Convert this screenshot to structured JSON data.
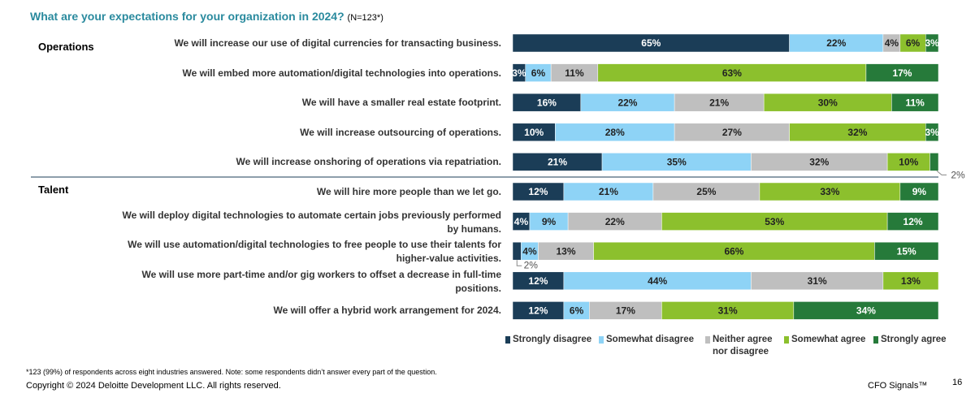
{
  "title": "What are your expectations for your organization in 2024?",
  "subtitle": "(N=123*)",
  "chart_data": [
    {
      "type": "stacked-barh",
      "group": "Operations",
      "xlim": [
        0,
        100
      ],
      "categories": [
        "We will increase our use of digital currencies for transacting business.",
        "We will embed more automation/digital technologies into operations.",
        "We will have a smaller real estate footprint.",
        "We will increase outsourcing of operations.",
        "We will increase onshoring of operations via repatriation."
      ],
      "series": [
        {
          "name": "Strongly disagree",
          "color": "#1b3d57",
          "values": [
            65,
            3,
            16,
            10,
            21
          ],
          "value_labels": [
            "65%",
            "3%",
            "16%",
            "10%",
            "21%"
          ]
        },
        {
          "name": "Somewhat disagree",
          "color": "#8ed3f6",
          "values": [
            22,
            6,
            22,
            28,
            35
          ],
          "value_labels": [
            "22%",
            "6%",
            "22%",
            "28%",
            "35%"
          ]
        },
        {
          "name": "Neither agree nor disagree",
          "color": "#bfbfbf",
          "values": [
            4,
            11,
            21,
            27,
            32
          ],
          "value_labels": [
            "4%",
            "11%",
            "21%",
            "27%",
            "32%"
          ]
        },
        {
          "name": "Somewhat agree",
          "color": "#8cc02d",
          "values": [
            6,
            63,
            30,
            32,
            10
          ],
          "value_labels": [
            "6%",
            "63%",
            "30%",
            "32%",
            "10%"
          ]
        },
        {
          "name": "Strongly agree",
          "color": "#267a3a",
          "values": [
            3,
            17,
            11,
            3,
            2
          ],
          "value_labels": [
            "3%",
            "17%",
            "11%",
            "3%",
            "2%"
          ]
        }
      ]
    },
    {
      "type": "stacked-barh",
      "group": "Talent",
      "xlim": [
        0,
        100
      ],
      "categories": [
        "We will hire more people than we let go.",
        "We will deploy digital technologies to automate certain jobs previously performed by humans.",
        "We will use automation/digital technologies to free people to use their talents for higher-value activities.",
        "We will use more part-time and/or gig workers to offset a decrease in full-time positions.",
        "We will offer a hybrid work arrangement for 2024."
      ],
      "series": [
        {
          "name": "Strongly disagree",
          "color": "#1b3d57",
          "values": [
            12,
            4,
            2,
            12,
            12
          ],
          "value_labels": [
            "12%",
            "4%",
            "2%",
            "12%",
            "12%"
          ]
        },
        {
          "name": "Somewhat disagree",
          "color": "#8ed3f6",
          "values": [
            21,
            9,
            4,
            44,
            6
          ],
          "value_labels": [
            "21%",
            "9%",
            "4%",
            "44%",
            "6%"
          ]
        },
        {
          "name": "Neither agree nor disagree",
          "color": "#bfbfbf",
          "values": [
            25,
            22,
            13,
            31,
            17
          ],
          "value_labels": [
            "25%",
            "22%",
            "13%",
            "31%",
            "17%"
          ]
        },
        {
          "name": "Somewhat agree",
          "color": "#8cc02d",
          "values": [
            33,
            53,
            66,
            13,
            31
          ],
          "value_labels": [
            "33%",
            "53%",
            "66%",
            "13%",
            "31%"
          ]
        },
        {
          "name": "Strongly agree",
          "color": "#267a3a",
          "values": [
            9,
            12,
            15,
            null,
            34
          ],
          "value_labels": [
            "9%",
            "12%",
            "15%",
            null,
            "34%"
          ]
        }
      ]
    }
  ],
  "footnote": "*123 (99%) of respondents across eight industries answered. Note: some respondents didn’t answer every part of the question.",
  "copyright": "Copyright © 2024 Deloitte Development LLC. All rights reserved.",
  "brand": "CFO Signals™",
  "page_number": "16"
}
